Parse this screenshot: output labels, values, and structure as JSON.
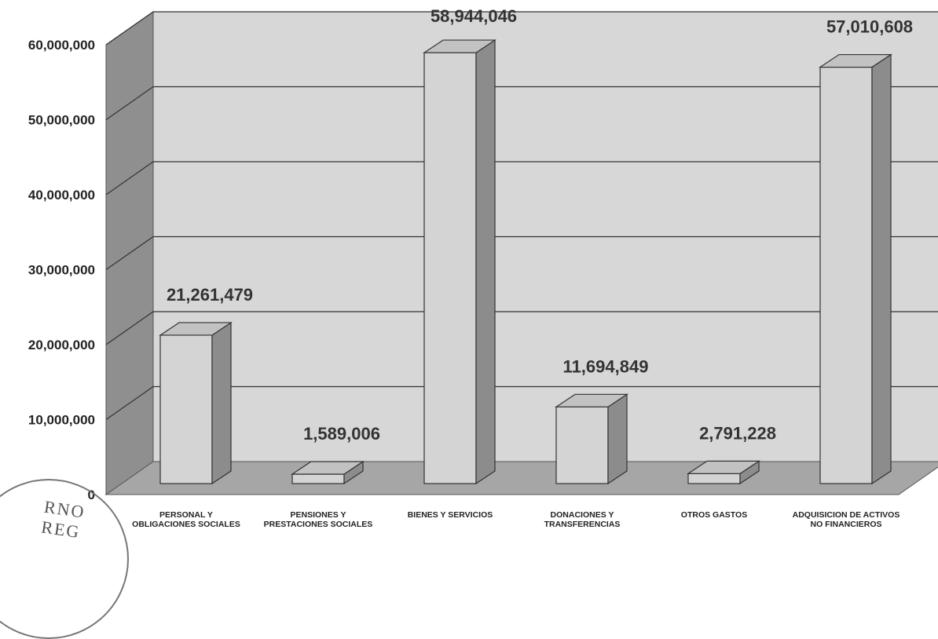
{
  "chart_data": {
    "type": "bar",
    "categories": [
      "PERSONAL Y OBLIGACIONES SOCIALES",
      "PENSIONES Y PRESTACIONES SOCIALES",
      "BIENES Y SERVICIOS",
      "DONACIONES Y TRANSFERENCIAS",
      "OTROS GASTOS",
      "ADQUISICION DE ACTIVOS NO FINANCIEROS"
    ],
    "values": [
      21261479,
      1589006,
      58944046,
      11694849,
      2791228,
      57010608
    ],
    "value_labels": [
      "21,261,479",
      "1,589,006",
      "58,944,046",
      "11,694,849",
      "2,791,228",
      "57,010,608"
    ],
    "ylim": [
      0,
      60000000
    ],
    "yticks": [
      0,
      10000000,
      20000000,
      30000000,
      40000000,
      50000000,
      60000000
    ],
    "ytick_labels": [
      "0",
      "10,000,000",
      "20,000,000",
      "30,000,000",
      "40,000,000",
      "50,000,000",
      "60,000,000"
    ],
    "grid": true,
    "style": "3d",
    "colors": {
      "wall": "#d7d7d7",
      "side_wall": "#8f8f8f",
      "floor": "#a6a6a6",
      "bar_front": "#d4d4d4",
      "bar_top": "#c2c2c2",
      "bar_side": "#8c8c8c",
      "grid": "#333333"
    }
  },
  "stamp": {
    "text": "RNO REG"
  }
}
